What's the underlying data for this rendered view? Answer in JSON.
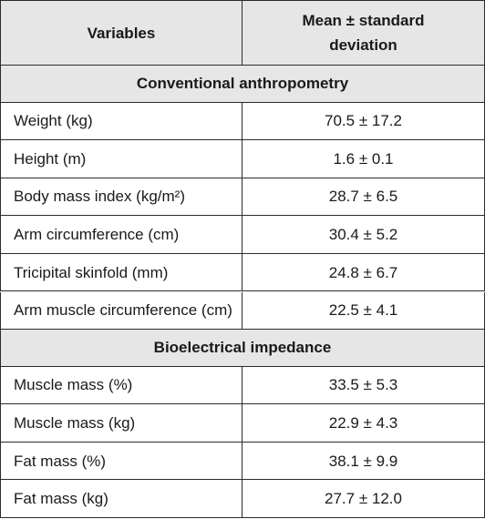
{
  "table": {
    "header": [
      "Variables",
      "Mean ± standard deviation"
    ],
    "sections": [
      {
        "title": "Conventional anthropometry",
        "rows": [
          [
            "Weight (kg)",
            "70.5 ± 17.2"
          ],
          [
            "Height (m)",
            "1.6 ± 0.1"
          ],
          [
            "Body mass index (kg/m²)",
            "28.7 ± 6.5"
          ],
          [
            "Arm circumference (cm)",
            "30.4 ± 5.2"
          ],
          [
            "Tricipital skinfold (mm)",
            "24.8 ± 6.7"
          ],
          [
            "Arm muscle circumference (cm)",
            "22.5 ± 4.1"
          ]
        ]
      },
      {
        "title": "Bioelectrical impedance",
        "rows": [
          [
            "Muscle mass (%)",
            "33.5 ± 5.3"
          ],
          [
            "Muscle mass (kg)",
            "22.9 ± 4.3"
          ],
          [
            "Fat mass (%)",
            "38.1 ± 9.9"
          ],
          [
            "Fat mass (kg)",
            "27.7 ± 12.0"
          ]
        ]
      }
    ]
  }
}
